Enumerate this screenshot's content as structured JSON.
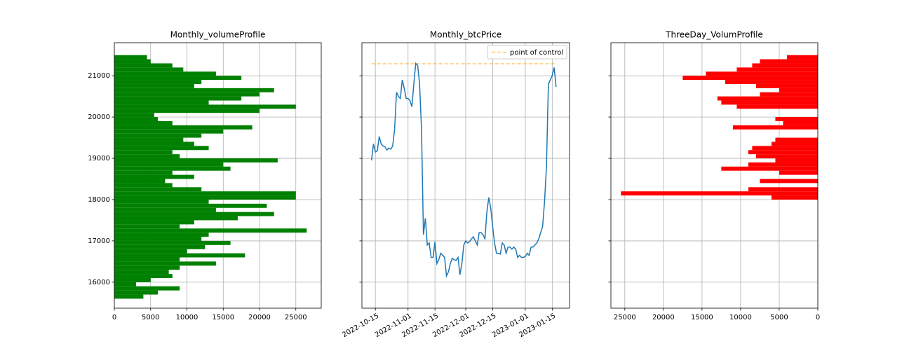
{
  "chart_data": [
    {
      "type": "barh",
      "title": "Monthly_volumeProfile",
      "color": "green",
      "grid": true,
      "y": [
        15650,
        15750,
        15850,
        15950,
        16050,
        16150,
        16250,
        16350,
        16450,
        16550,
        16650,
        16750,
        16850,
        16950,
        17050,
        17150,
        17250,
        17350,
        17450,
        17550,
        17650,
        17750,
        17850,
        17950,
        18050,
        18150,
        18250,
        18350,
        18450,
        18550,
        18650,
        18750,
        18850,
        18950,
        19050,
        19150,
        19250,
        19350,
        19450,
        19550,
        19650,
        19750,
        19850,
        19950,
        20050,
        20150,
        20250,
        20350,
        20450,
        20550,
        20650,
        20750,
        20850,
        20950,
        21050,
        21150,
        21250,
        21350,
        21450
      ],
      "values": [
        4000,
        6000,
        9000,
        3000,
        5000,
        8000,
        7500,
        9000,
        14000,
        9000,
        18000,
        10000,
        12500,
        16000,
        12000,
        13000,
        26500,
        9000,
        11000,
        17000,
        22000,
        14000,
        21000,
        13000,
        25000,
        25000,
        12000,
        8000,
        7000,
        11000,
        8000,
        16000,
        15000,
        22500,
        9000,
        8000,
        13000,
        11000,
        9500,
        12000,
        15000,
        19000,
        8000,
        6000,
        5500,
        20000,
        25000,
        13000,
        17500,
        20000,
        22000,
        11000,
        12000,
        17500,
        14000,
        9500,
        8000,
        5000,
        4500
      ],
      "xlim": [
        0,
        28500
      ],
      "xticks": [
        0,
        5000,
        10000,
        15000,
        20000,
        25000
      ],
      "ylim": [
        15370,
        21800
      ],
      "yticks": [
        16000,
        17000,
        18000,
        19000,
        20000,
        21000
      ],
      "show_ytick_labels": true
    },
    {
      "type": "line",
      "title": "Monthly_btcPrice",
      "color": "#1f77b4",
      "grid": true,
      "x": [
        "2022-10-13",
        "2022-10-14",
        "2022-10-15",
        "2022-10-16",
        "2022-10-17",
        "2022-10-18",
        "2022-10-19",
        "2022-10-20",
        "2022-10-21",
        "2022-10-22",
        "2022-10-23",
        "2022-10-24",
        "2022-10-25",
        "2022-10-26",
        "2022-10-27",
        "2022-10-28",
        "2022-10-29",
        "2022-10-30",
        "2022-10-31",
        "2022-11-01",
        "2022-11-02",
        "2022-11-03",
        "2022-11-04",
        "2022-11-05",
        "2022-11-06",
        "2022-11-07",
        "2022-11-08",
        "2022-11-09",
        "2022-11-10",
        "2022-11-11",
        "2022-11-12",
        "2022-11-13",
        "2022-11-14",
        "2022-11-15",
        "2022-11-16",
        "2022-11-17",
        "2022-11-18",
        "2022-11-19",
        "2022-11-20",
        "2022-11-21",
        "2022-11-22",
        "2022-11-23",
        "2022-11-24",
        "2022-11-25",
        "2022-11-26",
        "2022-11-27",
        "2022-11-28",
        "2022-11-29",
        "2022-11-30",
        "2022-12-01",
        "2022-12-02",
        "2022-12-03",
        "2022-12-04",
        "2022-12-05",
        "2022-12-06",
        "2022-12-07",
        "2022-12-08",
        "2022-12-09",
        "2022-12-10",
        "2022-12-11",
        "2022-12-12",
        "2022-12-13",
        "2022-12-14",
        "2022-12-15",
        "2022-12-16",
        "2022-12-17",
        "2022-12-18",
        "2022-12-19",
        "2022-12-20",
        "2022-12-21",
        "2022-12-22",
        "2022-12-23",
        "2022-12-24",
        "2022-12-25",
        "2022-12-26",
        "2022-12-27",
        "2022-12-28",
        "2022-12-29",
        "2022-12-30",
        "2022-12-31",
        "2023-01-01",
        "2023-01-02",
        "2023-01-03",
        "2023-01-04",
        "2023-01-05",
        "2023-01-06",
        "2023-01-07",
        "2023-01-08",
        "2023-01-09",
        "2023-01-10",
        "2023-01-11",
        "2023-01-12",
        "2023-01-13",
        "2023-01-14",
        "2023-01-15",
        "2023-01-16",
        "2023-01-17"
      ],
      "values": [
        18950,
        19350,
        19150,
        19180,
        19530,
        19350,
        19300,
        19280,
        19200,
        19250,
        19220,
        19300,
        19700,
        20600,
        20500,
        20450,
        20900,
        20700,
        20450,
        20450,
        20400,
        20250,
        20800,
        21300,
        21250,
        20800,
        19700,
        17150,
        17550,
        16900,
        16950,
        16600,
        16600,
        16980,
        16450,
        16550,
        16700,
        16650,
        16600,
        16150,
        16250,
        16450,
        16580,
        16540,
        16530,
        16600,
        16180,
        16450,
        16900,
        17000,
        16950,
        16980,
        17050,
        17100,
        17000,
        16900,
        17200,
        17200,
        17150,
        17050,
        17700,
        18050,
        17800,
        17350,
        16950,
        16700,
        16700,
        16680,
        16950,
        16900,
        16700,
        16850,
        16850,
        16800,
        16850,
        16800,
        16600,
        16650,
        16600,
        16600,
        16620,
        16700,
        16650,
        16850,
        16850,
        16900,
        16950,
        17050,
        17200,
        17350,
        17950,
        18800,
        20800,
        20900,
        21000,
        21200,
        20730
      ],
      "reference_line": {
        "label": "point of control",
        "value": 21290,
        "color": "orange"
      },
      "legend": "upper right",
      "xlim": [
        "2022-10-08",
        "2023-01-24"
      ],
      "xticks": [
        "2022-10-15",
        "2022-11-01",
        "2022-11-15",
        "2022-12-01",
        "2022-12-15",
        "2023-01-01",
        "2023-01-15"
      ],
      "ylim": [
        15370,
        21800
      ],
      "yticks": [
        16000,
        17000,
        18000,
        19000,
        20000,
        21000
      ],
      "show_ytick_labels": false
    },
    {
      "type": "barh",
      "title": "ThreeDay_VolumProfile",
      "color": "red",
      "grid": true,
      "y": [
        15650,
        15750,
        15850,
        15950,
        16050,
        16150,
        16250,
        16350,
        16450,
        16550,
        16650,
        16750,
        16850,
        16950,
        17050,
        17150,
        17250,
        17350,
        17450,
        17550,
        17650,
        17750,
        17850,
        17950,
        18050,
        18150,
        18250,
        18350,
        18450,
        18550,
        18650,
        18750,
        18850,
        18950,
        19050,
        19150,
        19250,
        19350,
        19450,
        19550,
        19650,
        19750,
        19850,
        19950,
        20050,
        20150,
        20250,
        20350,
        20450,
        20550,
        20650,
        20750,
        20850,
        20950,
        21050,
        21150,
        21250,
        21350,
        21450
      ],
      "values": [
        0,
        0,
        0,
        0,
        0,
        0,
        0,
        0,
        0,
        0,
        0,
        0,
        0,
        0,
        0,
        0,
        0,
        0,
        0,
        0,
        0,
        0,
        0,
        0,
        6000,
        25500,
        9000,
        0,
        7500,
        0,
        5000,
        12500,
        9000,
        5500,
        8000,
        9000,
        8500,
        6000,
        5500,
        0,
        0,
        11000,
        4500,
        5500,
        0,
        0,
        10500,
        12500,
        13000,
        7500,
        5000,
        8000,
        12000,
        17500,
        14500,
        10500,
        8500,
        7500,
        4000
      ],
      "xlim": [
        26800,
        0
      ],
      "xticks": [
        25000,
        20000,
        15000,
        10000,
        5000,
        0
      ],
      "ylim": [
        15370,
        21800
      ],
      "yticks": [
        16000,
        17000,
        18000,
        19000,
        20000,
        21000
      ],
      "show_ytick_labels": false
    }
  ]
}
